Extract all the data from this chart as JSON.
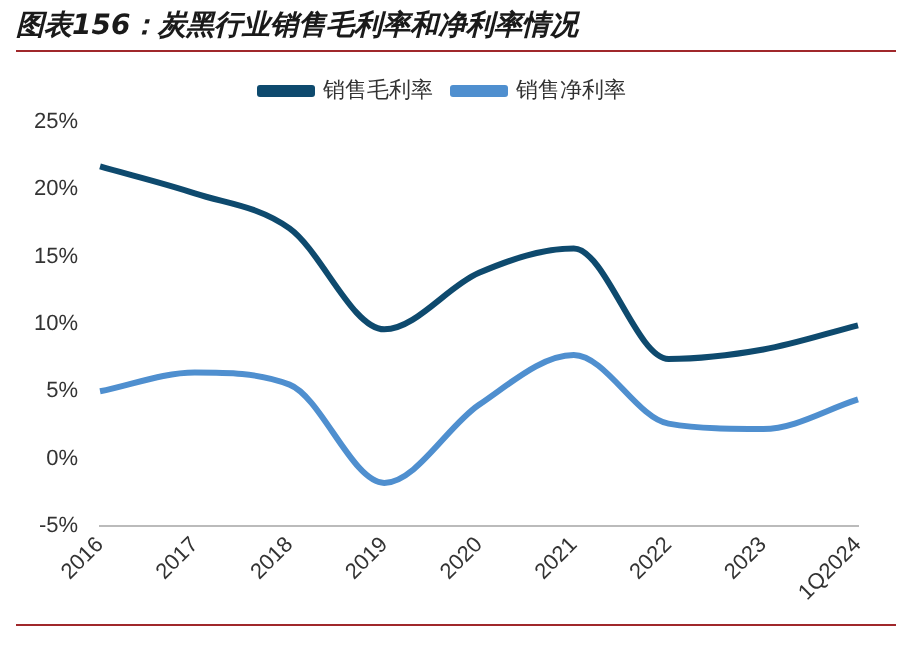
{
  "chart_data": {
    "type": "line",
    "title": "图表156：炭黑行业销售毛利率和净利率情况",
    "categories": [
      "2016",
      "2017",
      "2018",
      "2019",
      "2020",
      "2021",
      "2022",
      "2023",
      "1Q2024"
    ],
    "series": [
      {
        "name": "销售毛利率",
        "color": "#0e4a6e",
        "values": [
          21.7,
          19.7,
          17.1,
          9.6,
          13.8,
          15.6,
          7.4,
          8.1,
          9.9
        ]
      },
      {
        "name": "销售净利率",
        "color": "#4f8fcf",
        "values": [
          5.0,
          6.4,
          5.5,
          -1.8,
          4.0,
          7.7,
          2.6,
          2.2,
          4.4
        ]
      }
    ],
    "ylim": [
      -5,
      25
    ],
    "yticks": [
      {
        "value": -5,
        "label": "-5%"
      },
      {
        "value": 0,
        "label": "0%"
      },
      {
        "value": 5,
        "label": "5%"
      },
      {
        "value": 10,
        "label": "10%"
      },
      {
        "value": 15,
        "label": "15%"
      },
      {
        "value": 20,
        "label": "20%"
      },
      {
        "value": 25,
        "label": "25%"
      }
    ],
    "grid": false,
    "legend": "top",
    "marker": "none",
    "line_style": "solid"
  }
}
